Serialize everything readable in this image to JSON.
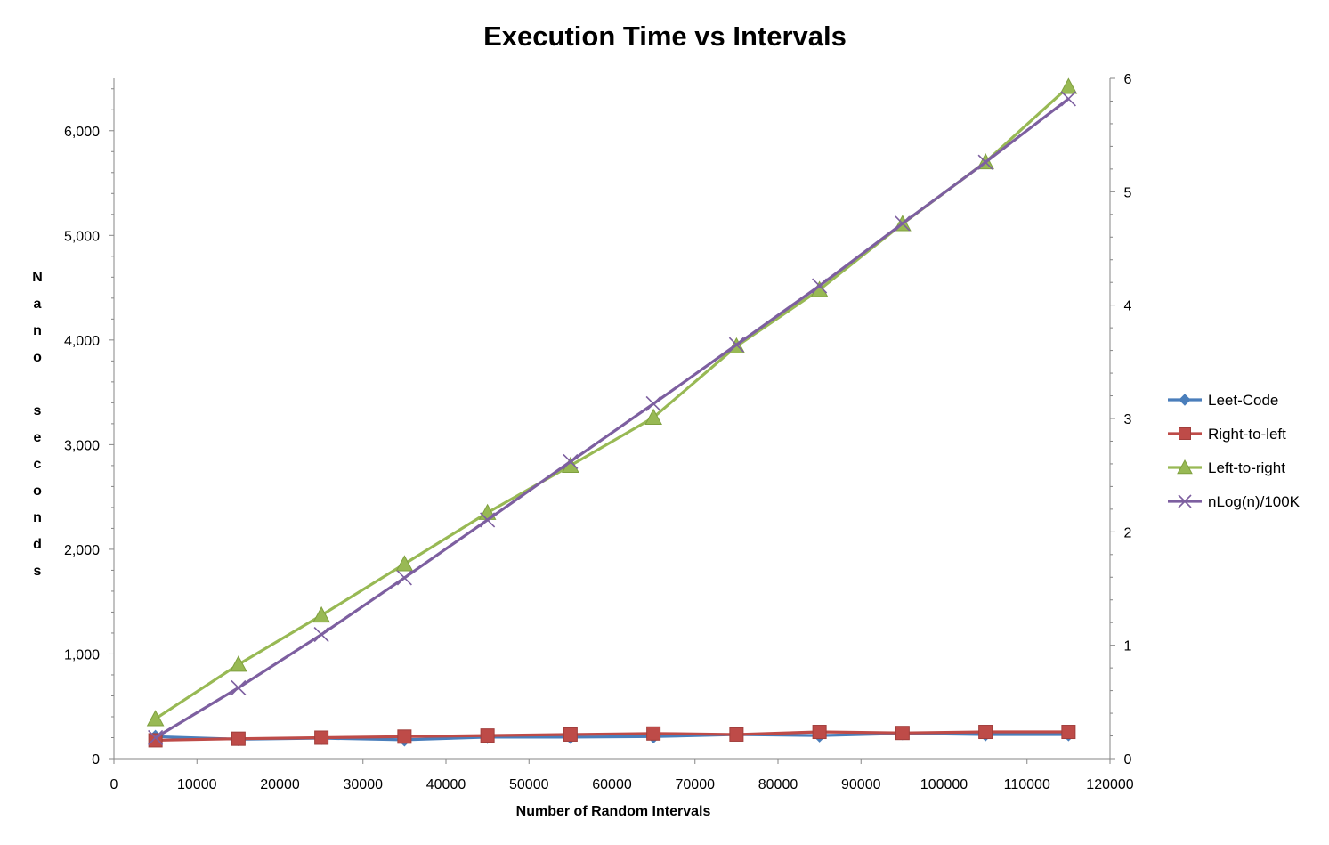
{
  "chart_data": {
    "type": "line",
    "title": "Execution Time vs Intervals",
    "xlabel": "Number of Random Intervals",
    "ylabel": "Nano seconds",
    "xlim": [
      0,
      120000
    ],
    "xticks": [
      0,
      10000,
      20000,
      30000,
      40000,
      50000,
      60000,
      70000,
      80000,
      90000,
      100000,
      110000,
      120000
    ],
    "ylim": [
      0,
      6500
    ],
    "yticks": [
      0,
      1000,
      2000,
      3000,
      4000,
      5000,
      6000
    ],
    "ytick_labels": [
      "0",
      "1,000",
      "2,000",
      "3,000",
      "4,000",
      "5,000",
      "6,000"
    ],
    "y2lim": [
      0,
      6
    ],
    "y2ticks": [
      0,
      1,
      2,
      3,
      4,
      5,
      6
    ],
    "grid": false,
    "legend_position": "right",
    "x": [
      5000,
      15000,
      25000,
      35000,
      45000,
      55000,
      65000,
      75000,
      85000,
      95000,
      105000,
      115000
    ],
    "series": [
      {
        "name": "Leet-Code",
        "axis": "left",
        "color": "#4a7ebb",
        "marker": "diamond",
        "values": [
          210,
          185,
          195,
          180,
          205,
          205,
          210,
          230,
          220,
          240,
          230,
          230
        ]
      },
      {
        "name": "Right-to-left",
        "axis": "left",
        "color": "#be4b48",
        "marker": "square",
        "values": [
          175,
          190,
          200,
          210,
          220,
          230,
          240,
          230,
          255,
          245,
          255,
          255
        ]
      },
      {
        "name": "Left-to-right",
        "axis": "left",
        "color": "#98b954",
        "marker": "triangle",
        "values": [
          380,
          900,
          1370,
          1860,
          2350,
          2800,
          3260,
          3940,
          4480,
          5110,
          5700,
          6420
        ]
      },
      {
        "name": "nLog(n)/100K",
        "axis": "right",
        "color": "#7d5fa0",
        "marker": "x",
        "values": [
          0.185,
          0.625,
          1.095,
          1.595,
          2.105,
          2.62,
          3.13,
          3.65,
          4.17,
          4.72,
          5.26,
          5.82
        ]
      }
    ]
  }
}
